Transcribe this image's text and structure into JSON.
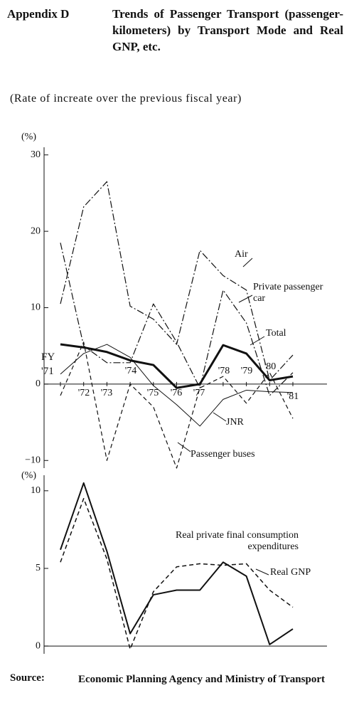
{
  "header": {
    "label": "Appendix D",
    "title": "Trends of Passenger Transport (passenger-kilometers) by Transport Mode and Real GNP, etc.",
    "subtitle": "(Rate of increate over the previous fiscal year)"
  },
  "chart_data": [
    {
      "type": "line",
      "y_unit": "(%)",
      "categories": [
        "FY '71",
        "'72",
        "'73",
        "'74",
        "'75",
        "'76",
        "'77",
        "'78",
        "'79",
        "'80",
        "'81"
      ],
      "ylim": [
        -11,
        31
      ],
      "yticks": [
        {
          "value": -10,
          "label": "−10"
        },
        0,
        10,
        20,
        30
      ],
      "series": [
        {
          "name": "Air",
          "color": "#111",
          "dash": "dashdot",
          "linewidth": 1.2,
          "values": [
            10.5,
            23.2,
            26.5,
            10.2,
            8.5,
            5.2,
            17.5,
            14.2,
            12.3,
            0.5,
            3.8
          ]
        },
        {
          "name": "Private passenger car",
          "color": "#111",
          "dash": "dashdot",
          "linewidth": 1.2,
          "values": [
            18.5,
            5.0,
            2.8,
            2.8,
            10.5,
            5.5,
            -0.5,
            12.3,
            8.0,
            -1.5,
            1.5
          ]
        },
        {
          "name": "Total",
          "color": "#111",
          "dash": "solid",
          "linewidth": 3,
          "values": [
            5.2,
            4.8,
            4.2,
            3.1,
            2.5,
            -0.5,
            0,
            5.1,
            4.0,
            0.5,
            1.0
          ]
        },
        {
          "name": "JNR",
          "color": "#111",
          "dash": "solid",
          "linewidth": 1,
          "values": [
            1.3,
            4.0,
            5.2,
            3.5,
            -0.2,
            -2.7,
            -5.5,
            -2.0,
            -0.8,
            -1.0,
            -1.1
          ]
        },
        {
          "name": "Passenger buses",
          "color": "#111",
          "dash": "dashed",
          "linewidth": 1.2,
          "values": [
            -1.5,
            5.5,
            -10.0,
            0,
            -3.0,
            -11.0,
            -0.5,
            1.0,
            -2.5,
            1.5,
            -4.5
          ]
        }
      ]
    },
    {
      "type": "line",
      "y_unit": "(%)",
      "categories": [
        null,
        null,
        null,
        null,
        null,
        null,
        null,
        null,
        null,
        null,
        null
      ],
      "ylim": [
        -0.5,
        11
      ],
      "yticks": [
        0,
        5,
        10
      ],
      "series": [
        {
          "name": "Real private final consumption expenditures",
          "color": "#111",
          "dash": "solid",
          "linewidth": 2,
          "values": [
            6.2,
            10.5,
            6.1,
            0.8,
            3.3,
            3.6,
            3.6,
            5.4,
            4.5,
            0.1,
            1.1
          ]
        },
        {
          "name": "Real GNP",
          "color": "#111",
          "dash": "dashed",
          "linewidth": 1.5,
          "values": [
            5.4,
            9.5,
            5.6,
            -0.2,
            3.5,
            5.1,
            5.3,
            5.2,
            5.3,
            3.6,
            2.5
          ]
        }
      ]
    }
  ],
  "footer": {
    "label": "Source:",
    "text": "Economic Planning Agency and Ministry of Transport"
  }
}
